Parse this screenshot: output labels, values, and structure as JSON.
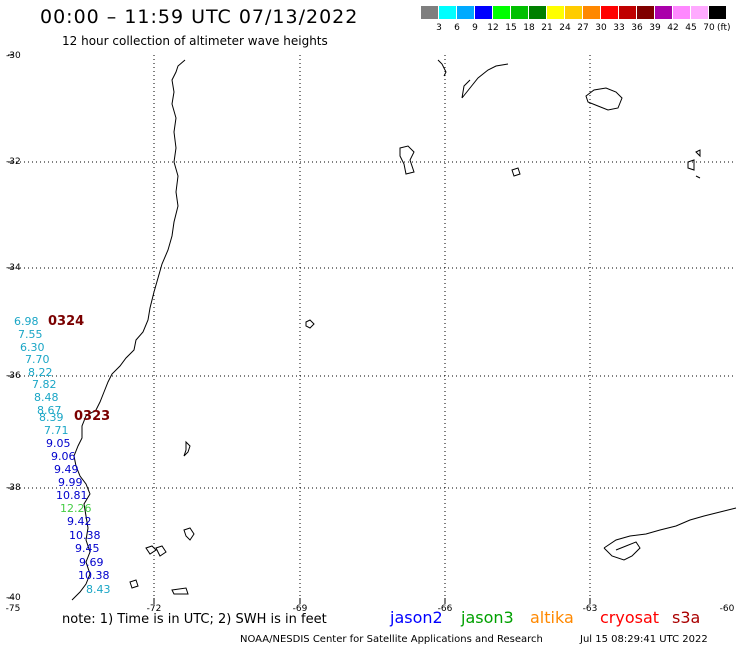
{
  "header": {
    "title": "00:00 – 11:59 UTC 07/13/2022",
    "subtitle": "12 hour collection of altimeter wave heights"
  },
  "colorbar": {
    "colors": [
      "#7f7f7f",
      "#00ffff",
      "#00aaff",
      "#0000ff",
      "#00ff00",
      "#00c000",
      "#008000",
      "#ffff00",
      "#ffcc00",
      "#ff8800",
      "#ff0000",
      "#c00000",
      "#800000",
      "#aa00aa",
      "#ff88ff",
      "#ffaaff",
      "#000000"
    ],
    "labels": [
      "3",
      "6",
      "9",
      "12",
      "15",
      "18",
      "21",
      "24",
      "27",
      "30",
      "33",
      "36",
      "39",
      "42",
      "45",
      "70"
    ],
    "unit": "(ft)"
  },
  "axes": {
    "lat_labels": [
      "-30",
      "-32",
      "-34",
      "-36",
      "-38",
      "-40"
    ],
    "lon_labels": [
      "-75",
      "-72",
      "-69",
      "-66",
      "-63",
      "-60"
    ]
  },
  "pass_labels": [
    "0324",
    "0323"
  ],
  "wave_heights": [
    {
      "value": "6.98",
      "color": "#1aa6c6"
    },
    {
      "value": "7.55",
      "color": "#1aa6c6"
    },
    {
      "value": "6.30",
      "color": "#1aa6c6"
    },
    {
      "value": "7.70",
      "color": "#1aa6c6"
    },
    {
      "value": "8.22",
      "color": "#1aa6c6"
    },
    {
      "value": "7.82",
      "color": "#1aa6c6"
    },
    {
      "value": "8.48",
      "color": "#1aa6c6"
    },
    {
      "value": "8.67",
      "color": "#1aa6c6"
    },
    {
      "value": "8.39",
      "color": "#1aa6c6"
    },
    {
      "value": "7.71",
      "color": "#1aa6c6"
    },
    {
      "value": "9.05",
      "color": "#0000cc"
    },
    {
      "value": "9.06",
      "color": "#0000cc"
    },
    {
      "value": "9.49",
      "color": "#0000cc"
    },
    {
      "value": "9.99",
      "color": "#0000cc"
    },
    {
      "value": "10.81",
      "color": "#0000cc"
    },
    {
      "value": "12.26",
      "color": "#44cc44"
    },
    {
      "value": "9.42",
      "color": "#0000cc"
    },
    {
      "value": "10.38",
      "color": "#0000cc"
    },
    {
      "value": "9.45",
      "color": "#0000cc"
    },
    {
      "value": "9.69",
      "color": "#0000cc"
    },
    {
      "value": "10.38",
      "color": "#0000cc"
    },
    {
      "value": "8.43",
      "color": "#1aa6c6"
    }
  ],
  "footer": {
    "note": "note: 1) Time is in UTC; 2) SWH is in feet",
    "satellites": [
      {
        "name": "jason2",
        "color": "#0000ff"
      },
      {
        "name": "jason3",
        "color": "#00a000"
      },
      {
        "name": "altika",
        "color": "#ff8800"
      },
      {
        "name": "cryosat",
        "color": "#ff0000"
      },
      {
        "name": "s3a",
        "color": "#aa0000"
      }
    ],
    "credit": "NOAA/NESDIS Center for Satellite Applications and Research",
    "timestamp": "Jul 15 08:29:41 UTC 2022"
  }
}
